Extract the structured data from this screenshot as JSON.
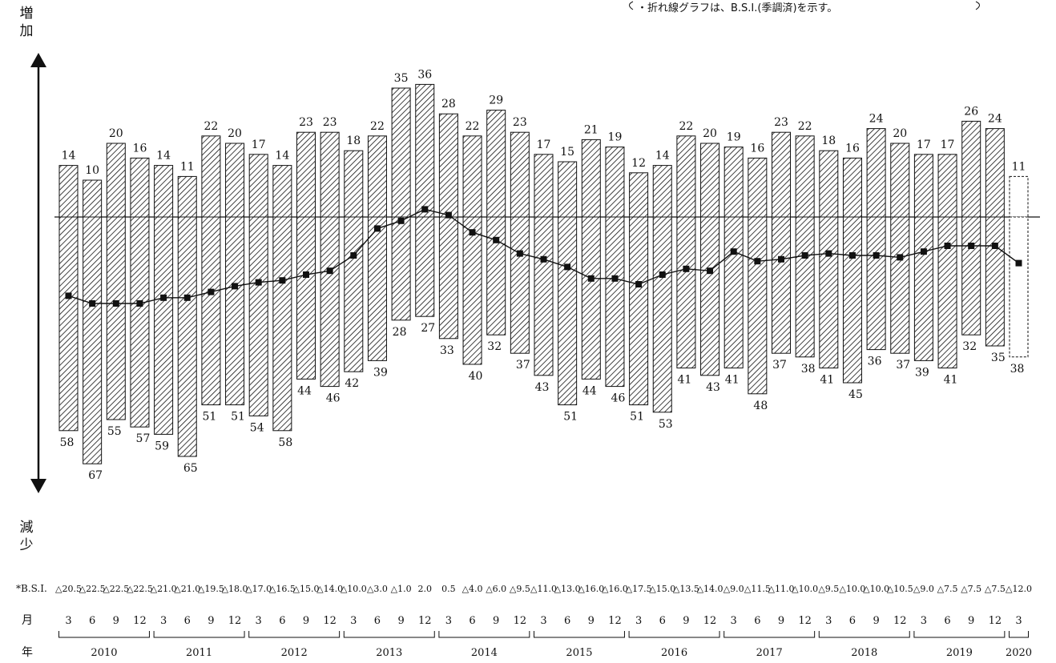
{
  "chart_data": {
    "type": "bar",
    "title": "",
    "note": "・折れ線グラフは、B.S.I.(季調済)を示す。",
    "ylabel_increase": "増加",
    "ylabel_decrease": "減少",
    "row_labels": {
      "bsi": "*B.S.I.",
      "month": "月",
      "year": "年"
    },
    "months": [
      "3",
      "6",
      "9",
      "12",
      "3",
      "6",
      "9",
      "12",
      "3",
      "6",
      "9",
      "12",
      "3",
      "6",
      "9",
      "12",
      "3",
      "6",
      "9",
      "12",
      "3",
      "6",
      "9",
      "12",
      "3",
      "6",
      "9",
      "12",
      "3",
      "6",
      "9",
      "12",
      "3",
      "6",
      "9",
      "12",
      "3",
      "6",
      "9",
      "12",
      "3"
    ],
    "years": [
      {
        "label": "2010",
        "count": 4
      },
      {
        "label": "2011",
        "count": 4
      },
      {
        "label": "2012",
        "count": 4
      },
      {
        "label": "2013",
        "count": 4
      },
      {
        "label": "2014",
        "count": 4
      },
      {
        "label": "2015",
        "count": 4
      },
      {
        "label": "2016",
        "count": 4
      },
      {
        "label": "2017",
        "count": 4
      },
      {
        "label": "2018",
        "count": 4
      },
      {
        "label": "2019",
        "count": 4
      },
      {
        "label": "2020",
        "count": 1
      }
    ],
    "series": [
      {
        "name": "増加",
        "values": [
          14,
          10,
          20,
          16,
          14,
          11,
          22,
          20,
          17,
          14,
          23,
          23,
          18,
          22,
          35,
          36,
          28,
          22,
          29,
          23,
          17,
          15,
          21,
          19,
          12,
          14,
          22,
          20,
          19,
          16,
          23,
          22,
          18,
          16,
          24,
          20,
          17,
          17,
          26,
          24,
          11
        ]
      },
      {
        "name": "減少",
        "values": [
          58,
          67,
          55,
          57,
          59,
          65,
          51,
          51,
          54,
          58,
          44,
          46,
          42,
          39,
          28,
          27,
          33,
          40,
          32,
          37,
          43,
          51,
          44,
          46,
          51,
          53,
          41,
          43,
          41,
          48,
          37,
          38,
          41,
          45,
          36,
          37,
          39,
          41,
          32,
          35,
          38
        ]
      },
      {
        "name": "B.S.I.",
        "values": [
          -20.5,
          -22.5,
          -22.5,
          -22.5,
          -21.0,
          -21.0,
          -19.5,
          -18.0,
          -17.0,
          -16.5,
          -15.0,
          -14.0,
          -10.0,
          -3.0,
          -1.0,
          2.0,
          0.5,
          -4.0,
          -6.0,
          -9.5,
          -11.0,
          -13.0,
          -16.0,
          -16.0,
          -17.5,
          -15.0,
          -13.5,
          -14.0,
          -9.0,
          -11.5,
          -11.0,
          -10.0,
          -9.5,
          -10.0,
          -10.0,
          -10.5,
          -9.0,
          -7.5,
          -7.5,
          -7.5,
          -12.0
        ]
      }
    ],
    "bsi_labels": [
      "△20.5",
      "△22.5",
      "△22.5",
      "△22.5",
      "△21.0",
      "△21.0",
      "△19.5",
      "△18.0",
      "△17.0",
      "△16.5",
      "△15.0",
      "△14.0",
      "△10.0",
      "△3.0",
      "△1.0",
      "2.0",
      "0.5",
      "△4.0",
      "△6.0",
      "△9.5",
      "△11.0",
      "△13.0",
      "△16.0",
      "△16.0",
      "△17.5",
      "△15.0",
      "△13.5",
      "△14.0",
      "△9.0",
      "△11.5",
      "△11.0",
      "△10.0",
      "△9.5",
      "△10.0",
      "△10.0",
      "△10.5",
      "△9.0",
      "△7.5",
      "△7.5",
      "△7.5",
      "△12.0"
    ],
    "preliminary_last": true
  }
}
